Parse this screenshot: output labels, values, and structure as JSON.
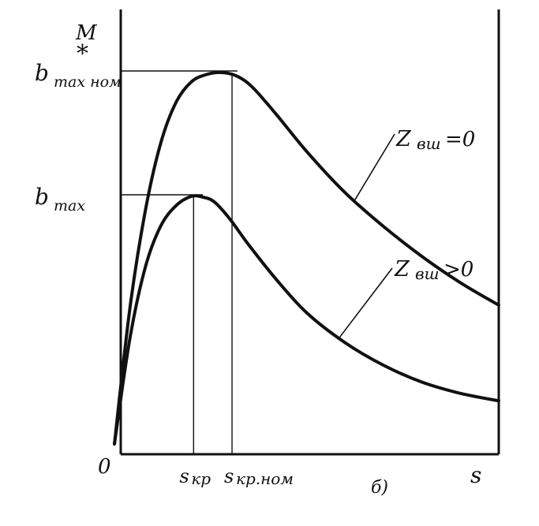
{
  "chart_data": {
    "type": "line",
    "title": "",
    "xlabel": "s",
    "ylabel": "M*",
    "ylabel_main": "M",
    "ylabel_sub": "*",
    "origin_label": "0",
    "panel_label": "б)",
    "grid": false,
    "x_ticks": [
      {
        "x": 0.206,
        "label": "s",
        "sub": "кр"
      },
      {
        "x": 0.306,
        "label": "s",
        "sub": "кр.ном"
      }
    ],
    "y_ticks": [
      {
        "y": 0.66,
        "label": "b",
        "sub": "max"
      },
      {
        "y": 0.99,
        "label": "b",
        "sub": "max ном"
      }
    ],
    "xlim": [
      0,
      1
    ],
    "ylim": [
      0,
      1.05
    ],
    "series": [
      {
        "name": "Z вш=0",
        "name_main": "Z",
        "name_sub": "вш",
        "name_suffix": "=0",
        "x": [
          0,
          0.04,
          0.08,
          0.12,
          0.16,
          0.2,
          0.24,
          0.28,
          0.32,
          0.36,
          0.42,
          0.5,
          0.6,
          0.7,
          0.8,
          0.9,
          1.0
        ],
        "y": [
          0,
          0.36,
          0.62,
          0.8,
          0.91,
          0.965,
          0.985,
          0.99,
          0.98,
          0.95,
          0.88,
          0.78,
          0.67,
          0.58,
          0.5,
          0.43,
          0.37
        ]
      },
      {
        "name": "Z вш>0",
        "name_main": "Z",
        "name_sub": "вш",
        "name_suffix": " >0",
        "x": [
          0,
          0.04,
          0.08,
          0.12,
          0.16,
          0.2,
          0.23,
          0.26,
          0.3,
          0.35,
          0.42,
          0.5,
          0.6,
          0.7,
          0.8,
          0.9,
          1.0
        ],
        "y": [
          0,
          0.28,
          0.47,
          0.58,
          0.635,
          0.66,
          0.658,
          0.645,
          0.6,
          0.53,
          0.44,
          0.35,
          0.27,
          0.21,
          0.165,
          0.135,
          0.115
        ]
      }
    ]
  }
}
